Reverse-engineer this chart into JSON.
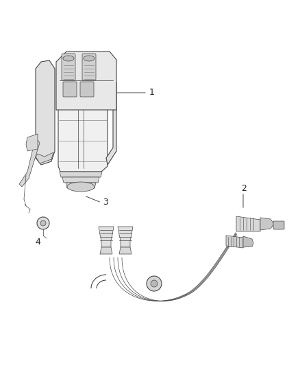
{
  "background_color": "#ffffff",
  "line_color": "#444444",
  "light_line_color": "#888888",
  "fill_color": "#e8e8e8",
  "fill_dark": "#cccccc",
  "label_color": "#222222",
  "fig_width": 4.38,
  "fig_height": 5.33,
  "dpi": 100,
  "label_fontsize": 9,
  "lw_main": 0.8,
  "lw_thin": 0.5,
  "lw_thick": 1.2
}
